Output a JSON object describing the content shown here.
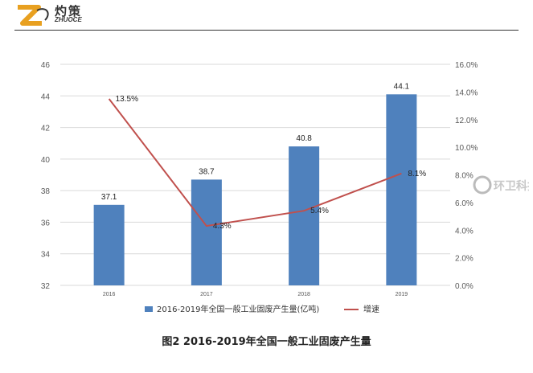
{
  "header": {
    "logo_cn": "灼策",
    "logo_en": "ZHUOCE"
  },
  "watermark": {
    "text": "环卫科技网"
  },
  "caption": "图2   2016-2019年全国一般工业固废产生量",
  "colors": {
    "bar": "#4F81BD",
    "line": "#C0504D",
    "axis_text": "#595959",
    "grid": "#D9D9D9",
    "logo_orange": "#E8A020"
  },
  "chart_data": {
    "type": "bar",
    "categories": [
      "2016",
      "2017",
      "2018",
      "2019"
    ],
    "series": [
      {
        "name": "2016-2019年全国一般工业固废产生量(亿吨)",
        "type": "bar",
        "axis": "left",
        "values": [
          37.1,
          38.7,
          40.8,
          44.1
        ],
        "labels": [
          "37.1",
          "38.7",
          "40.8",
          "44.1"
        ]
      },
      {
        "name": "增速",
        "type": "line",
        "axis": "right",
        "values": [
          13.5,
          4.3,
          5.4,
          8.1
        ],
        "labels": [
          "13.5%",
          "4.3%",
          "5.4%",
          "8.1%"
        ]
      }
    ],
    "y_left": {
      "min": 32,
      "max": 46,
      "ticks": [
        "32",
        "34",
        "36",
        "38",
        "40",
        "42",
        "44",
        "46"
      ]
    },
    "y_right": {
      "min": 0,
      "max": 16,
      "ticks": [
        "0.0%",
        "2.0%",
        "4.0%",
        "6.0%",
        "8.0%",
        "10.0%",
        "12.0%",
        "14.0%",
        "16.0%"
      ]
    },
    "grid": true,
    "legend_position": "bottom"
  }
}
